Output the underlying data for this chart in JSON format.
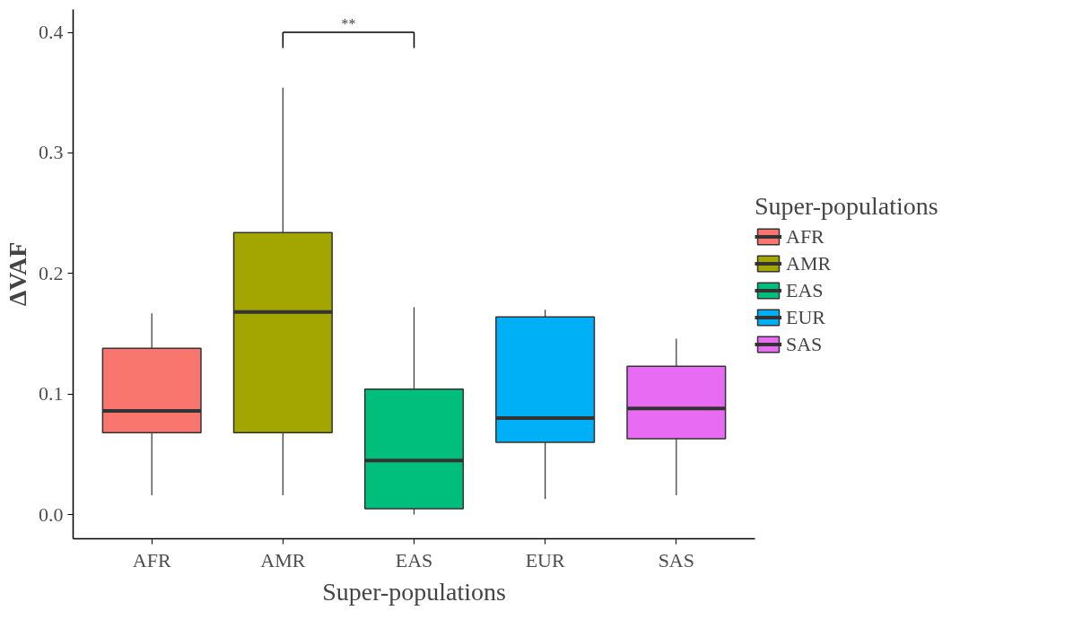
{
  "chart_data": {
    "type": "box",
    "xlabel": "Super-populations",
    "ylabel": "ΔVAF",
    "legend_title": "Super-populations",
    "legend": "right",
    "grid": false,
    "categories": [
      "AFR",
      "AMR",
      "EAS",
      "EUR",
      "SAS"
    ],
    "series": [
      {
        "name": "AFR",
        "color": "#f8766d",
        "boxes": [
          {
            "low": 0.016,
            "q1": 0.068,
            "median": 0.086,
            "q3": 0.138,
            "high": 0.167
          },
          null,
          null,
          null,
          null
        ]
      },
      {
        "name": "AMR",
        "color": "#a3a500",
        "boxes": [
          null,
          {
            "low": 0.016,
            "q1": 0.068,
            "median": 0.168,
            "q3": 0.234,
            "high": 0.354
          },
          null,
          null,
          null
        ]
      },
      {
        "name": "EAS",
        "color": "#00bf7d",
        "boxes": [
          null,
          null,
          {
            "low": 0.0,
            "q1": 0.005,
            "median": 0.045,
            "q3": 0.104,
            "high": 0.172
          },
          null,
          null
        ]
      },
      {
        "name": "EUR",
        "color": "#00b0f6",
        "boxes": [
          null,
          null,
          null,
          {
            "low": 0.013,
            "q1": 0.06,
            "median": 0.08,
            "q3": 0.164,
            "high": 0.17
          },
          null
        ]
      },
      {
        "name": "SAS",
        "color": "#e76bf3",
        "boxes": [
          null,
          null,
          null,
          null,
          {
            "low": 0.016,
            "q1": 0.063,
            "median": 0.088,
            "q3": 0.123,
            "high": 0.146
          }
        ]
      }
    ],
    "ylim": [
      -0.02,
      0.419
    ],
    "yticks": [
      {
        "value": 0,
        "label": "0.0"
      },
      0.1,
      0.2,
      0.3,
      0.4
    ],
    "annotations": [
      "**"
    ]
  }
}
